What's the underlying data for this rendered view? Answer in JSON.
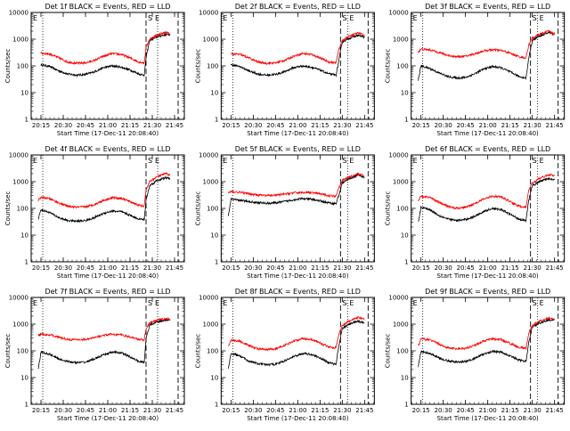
{
  "time_axis": {
    "ticks": [
      "20:15",
      "20:30",
      "20:45",
      "21:00",
      "21:15",
      "21:30",
      "21:45"
    ],
    "tick_hours": [
      20.25,
      20.5,
      20.75,
      21.0,
      21.25,
      21.5,
      21.75
    ],
    "range_hours": [
      20.14,
      21.86
    ]
  },
  "y_axis": {
    "label": "Counts/sec",
    "scale": "log",
    "range": [
      1,
      10000
    ],
    "ticks": [
      "1",
      "10",
      "100",
      "1000",
      "10000"
    ]
  },
  "xlabel": "Start Time (17-Dec-11 20:08:40)",
  "markers": {
    "S": "S",
    "E": "E"
  },
  "colors": {
    "events": "#000000",
    "lld": "#ff0000"
  },
  "chart_data": [
    {
      "type": "line",
      "title": "Det 1f BLACK = Events, RED = LLD",
      "dotted_hours": [
        20.27,
        21.56
      ],
      "dashed_hours": [
        21.43,
        21.79
      ],
      "series": [
        {
          "name": "Events",
          "x": [
            20.25,
            20.35,
            20.45,
            20.55,
            20.65,
            20.75,
            20.85,
            20.95,
            21.05,
            21.15,
            21.25,
            21.35,
            21.41,
            21.43,
            21.47,
            21.55,
            21.65,
            21.7
          ],
          "y": [
            110,
            95,
            65,
            50,
            45,
            48,
            60,
            85,
            100,
            90,
            70,
            50,
            45,
            200,
            900,
            1200,
            1500,
            1500
          ]
        },
        {
          "name": "LLD",
          "x": [
            20.25,
            20.35,
            20.45,
            20.55,
            20.65,
            20.75,
            20.85,
            20.95,
            21.05,
            21.15,
            21.25,
            21.35,
            21.41,
            21.43,
            21.47,
            21.55,
            21.65,
            21.7
          ],
          "y": [
            300,
            280,
            200,
            140,
            125,
            130,
            160,
            230,
            290,
            270,
            200,
            140,
            130,
            500,
            1000,
            1400,
            1800,
            1600
          ]
        }
      ]
    },
    {
      "type": "line",
      "title": "Det 2f BLACK = Events, RED = LLD",
      "dotted_hours": [
        20.27,
        21.56
      ],
      "dashed_hours": [
        21.48,
        21.79
      ],
      "series": [
        {
          "name": "Events",
          "x": [
            20.25,
            20.35,
            20.45,
            20.55,
            20.65,
            20.75,
            20.85,
            20.95,
            21.05,
            21.15,
            21.25,
            21.35,
            21.43,
            21.46,
            21.5,
            21.58,
            21.68,
            21.75
          ],
          "y": [
            110,
            95,
            65,
            50,
            45,
            48,
            60,
            85,
            100,
            90,
            70,
            50,
            45,
            150,
            800,
            1100,
            1400,
            1200
          ]
        },
        {
          "name": "LLD",
          "x": [
            20.25,
            20.35,
            20.45,
            20.55,
            20.65,
            20.75,
            20.85,
            20.95,
            21.05,
            21.15,
            21.25,
            21.35,
            21.43,
            21.46,
            21.5,
            21.58,
            21.68,
            21.75
          ],
          "y": [
            280,
            270,
            200,
            140,
            125,
            130,
            160,
            230,
            290,
            270,
            200,
            140,
            130,
            400,
            900,
            1300,
            1700,
            1400
          ]
        }
      ]
    },
    {
      "type": "line",
      "title": "Det 3f BLACK = Events, RED = LLD",
      "dotted_hours": [
        20.27,
        21.56
      ],
      "dashed_hours": [
        21.48,
        21.79
      ],
      "series": [
        {
          "name": "Events",
          "x": [
            20.22,
            20.25,
            20.35,
            20.45,
            20.55,
            20.65,
            20.75,
            20.85,
            20.95,
            21.05,
            21.15,
            21.25,
            21.35,
            21.43,
            21.46,
            21.5,
            21.58,
            21.68,
            21.75
          ],
          "y": [
            30,
            100,
            80,
            55,
            40,
            35,
            37,
            50,
            75,
            95,
            85,
            60,
            40,
            35,
            200,
            900,
            1300,
            1800,
            1500
          ]
        },
        {
          "name": "LLD",
          "x": [
            20.22,
            20.25,
            20.35,
            20.45,
            20.55,
            20.65,
            20.75,
            20.85,
            20.95,
            21.05,
            21.15,
            21.25,
            21.35,
            21.43,
            21.46,
            21.5,
            21.58,
            21.68,
            21.75
          ],
          "y": [
            330,
            420,
            400,
            320,
            250,
            220,
            230,
            280,
            360,
            400,
            380,
            300,
            220,
            200,
            600,
            1100,
            1500,
            2000,
            1600
          ]
        }
      ]
    },
    {
      "type": "line",
      "title": "Det 4f BLACK = Events, RED = LLD",
      "dotted_hours": [
        20.27,
        21.56
      ],
      "dashed_hours": [
        21.43,
        21.79
      ],
      "series": [
        {
          "name": "Events",
          "x": [
            20.22,
            20.25,
            20.35,
            20.45,
            20.55,
            20.65,
            20.75,
            20.85,
            20.95,
            21.05,
            21.15,
            21.25,
            21.35,
            21.41,
            21.43,
            21.47,
            21.55,
            21.65,
            21.7
          ],
          "y": [
            40,
            90,
            70,
            45,
            35,
            33,
            35,
            45,
            65,
            80,
            75,
            55,
            40,
            38,
            200,
            700,
            1100,
            1400,
            1300
          ]
        },
        {
          "name": "LLD",
          "x": [
            20.22,
            20.25,
            20.35,
            20.45,
            20.55,
            20.65,
            20.75,
            20.85,
            20.95,
            21.05,
            21.15,
            21.25,
            21.35,
            21.41,
            21.43,
            21.47,
            21.55,
            21.65,
            21.7
          ],
          "y": [
            200,
            260,
            230,
            160,
            120,
            110,
            115,
            140,
            200,
            250,
            240,
            180,
            130,
            120,
            500,
            1000,
            1500,
            2000,
            1800
          ]
        }
      ]
    },
    {
      "type": "line",
      "title": "Det 5f BLACK = Events, RED = LLD",
      "dotted_hours": [
        20.27,
        21.56
      ],
      "dashed_hours": [
        21.48,
        21.79
      ],
      "series": [
        {
          "name": "Events",
          "x": [
            20.22,
            20.25,
            20.35,
            20.45,
            20.55,
            20.65,
            20.75,
            20.85,
            20.95,
            21.05,
            21.15,
            21.25,
            21.35,
            21.43,
            21.46,
            21.5,
            21.58,
            21.68,
            21.75
          ],
          "y": [
            50,
            220,
            200,
            180,
            165,
            155,
            160,
            180,
            210,
            230,
            220,
            190,
            160,
            150,
            300,
            900,
            1300,
            1800,
            1400
          ]
        },
        {
          "name": "LLD",
          "x": [
            20.22,
            20.25,
            20.35,
            20.45,
            20.55,
            20.65,
            20.75,
            20.85,
            20.95,
            21.05,
            21.15,
            21.25,
            21.35,
            21.43,
            21.46,
            21.5,
            21.58,
            21.68,
            21.75
          ],
          "y": [
            380,
            420,
            400,
            350,
            320,
            300,
            310,
            340,
            380,
            400,
            390,
            350,
            300,
            290,
            600,
            1100,
            1500,
            2000,
            1600
          ]
        }
      ]
    },
    {
      "type": "line",
      "title": "Det 6f BLACK = Events, RED = LLD",
      "dotted_hours": [
        20.27,
        21.56
      ],
      "dashed_hours": [
        21.48,
        21.79
      ],
      "series": [
        {
          "name": "Events",
          "x": [
            20.22,
            20.25,
            20.35,
            20.45,
            20.55,
            20.65,
            20.75,
            20.85,
            20.95,
            21.05,
            21.15,
            21.25,
            21.35,
            21.43,
            21.46,
            21.5,
            21.58,
            21.68,
            21.75
          ],
          "y": [
            30,
            110,
            90,
            55,
            40,
            35,
            38,
            50,
            75,
            100,
            90,
            60,
            40,
            35,
            200,
            700,
            1000,
            1300,
            1200
          ]
        },
        {
          "name": "LLD",
          "x": [
            20.22,
            20.25,
            20.35,
            20.45,
            20.55,
            20.65,
            20.75,
            20.85,
            20.95,
            21.05,
            21.15,
            21.25,
            21.35,
            21.43,
            21.46,
            21.5,
            21.58,
            21.68,
            21.75
          ],
          "y": [
            200,
            280,
            260,
            170,
            120,
            100,
            110,
            150,
            220,
            290,
            270,
            180,
            120,
            110,
            500,
            900,
            1300,
            1800,
            1700
          ]
        }
      ]
    },
    {
      "type": "line",
      "title": "Det 7f BLACK = Events, RED = LLD",
      "dotted_hours": [
        20.27,
        21.56
      ],
      "dashed_hours": [
        21.43,
        21.79
      ],
      "series": [
        {
          "name": "Events",
          "x": [
            20.22,
            20.25,
            20.35,
            20.45,
            20.55,
            20.65,
            20.75,
            20.85,
            20.95,
            21.05,
            21.15,
            21.25,
            21.35,
            21.41,
            21.43,
            21.47,
            21.55,
            21.65,
            21.7
          ],
          "y": [
            20,
            90,
            75,
            50,
            40,
            36,
            38,
            50,
            70,
            90,
            85,
            60,
            40,
            38,
            300,
            900,
            1200,
            1400,
            1400
          ]
        },
        {
          "name": "LLD",
          "x": [
            20.22,
            20.25,
            20.35,
            20.45,
            20.55,
            20.65,
            20.75,
            20.85,
            20.95,
            21.05,
            21.15,
            21.25,
            21.35,
            21.41,
            21.43,
            21.47,
            21.55,
            21.65,
            21.7
          ],
          "y": [
            380,
            420,
            400,
            320,
            270,
            260,
            270,
            310,
            380,
            420,
            400,
            330,
            270,
            260,
            700,
            1100,
            1400,
            1600,
            1500
          ]
        }
      ]
    },
    {
      "type": "line",
      "title": "Det 8f BLACK = Events, RED = LLD",
      "dotted_hours": [
        20.27,
        21.56
      ],
      "dashed_hours": [
        21.48,
        21.79
      ],
      "series": [
        {
          "name": "Events",
          "x": [
            20.22,
            20.25,
            20.35,
            20.45,
            20.55,
            20.65,
            20.75,
            20.85,
            20.95,
            21.05,
            21.15,
            21.25,
            21.35,
            21.43,
            21.46,
            21.5,
            21.58,
            21.68,
            21.75
          ],
          "y": [
            20,
            80,
            65,
            42,
            33,
            30,
            32,
            42,
            60,
            80,
            75,
            55,
            35,
            32,
            150,
            700,
            1000,
            1300,
            1100
          ]
        },
        {
          "name": "LLD",
          "x": [
            20.22,
            20.25,
            20.35,
            20.45,
            20.55,
            20.65,
            20.75,
            20.85,
            20.95,
            21.05,
            21.15,
            21.25,
            21.35,
            21.43,
            21.46,
            21.5,
            21.58,
            21.68,
            21.75
          ],
          "y": [
            150,
            250,
            230,
            160,
            120,
            110,
            120,
            160,
            230,
            290,
            270,
            200,
            140,
            130,
            400,
            900,
            1300,
            1800,
            1500
          ]
        }
      ]
    },
    {
      "type": "line",
      "title": "Det 9f BLACK = Events, RED = LLD",
      "dotted_hours": [
        20.27,
        21.56
      ],
      "dashed_hours": [
        21.48,
        21.79
      ],
      "series": [
        {
          "name": "Events",
          "x": [
            20.22,
            20.25,
            20.35,
            20.45,
            20.55,
            20.65,
            20.75,
            20.85,
            20.95,
            21.05,
            21.15,
            21.25,
            21.35,
            21.43,
            21.46,
            21.5,
            21.58,
            21.68,
            21.75
          ],
          "y": [
            25,
            95,
            80,
            55,
            42,
            38,
            40,
            52,
            75,
            95,
            90,
            65,
            45,
            40,
            200,
            800,
            1100,
            1400,
            1500
          ]
        },
        {
          "name": "LLD",
          "x": [
            20.22,
            20.25,
            20.35,
            20.45,
            20.55,
            20.65,
            20.75,
            20.85,
            20.95,
            21.05,
            21.15,
            21.25,
            21.35,
            21.43,
            21.46,
            21.5,
            21.58,
            21.68,
            21.75
          ],
          "y": [
            150,
            280,
            260,
            180,
            130,
            120,
            125,
            160,
            230,
            280,
            260,
            190,
            135,
            125,
            450,
            900,
            1300,
            1700,
            1600
          ]
        }
      ]
    }
  ]
}
